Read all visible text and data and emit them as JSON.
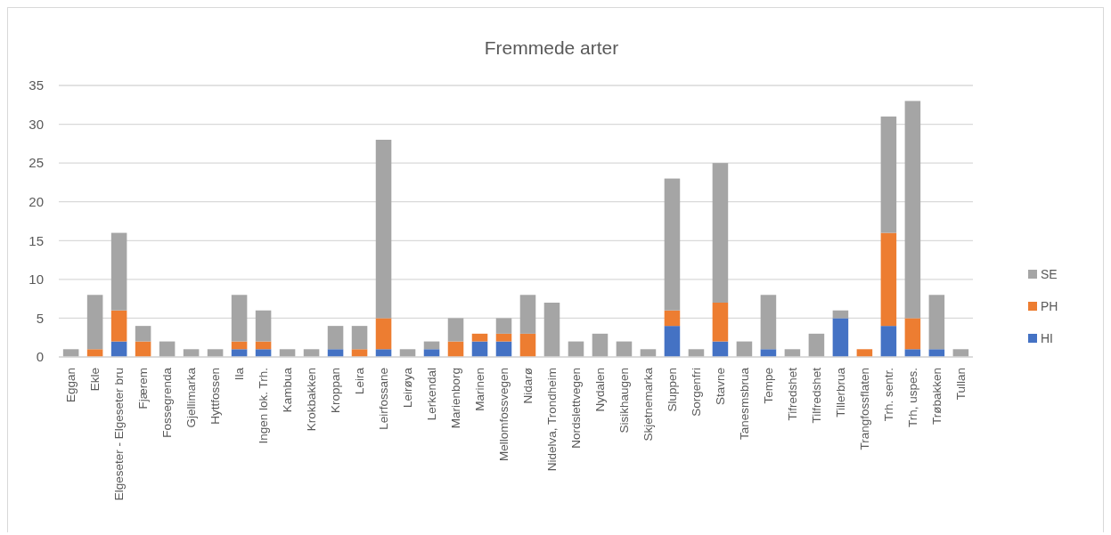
{
  "chart_data": {
    "type": "bar",
    "title": "Fremmede arter",
    "stacked": true,
    "grid": "y",
    "legend": "right",
    "categories": [
      "Eggan",
      "Ekle",
      "Elgeseter - Elgeseter bru",
      "Fjærem",
      "Fossegrenda",
      "Gjellimarka",
      "Hyttfossen",
      "Ila",
      "Ingen lok. Trh.",
      "Kambua",
      "Krokbakken",
      "Kroppan",
      "Leira",
      "Leirfossane",
      "Leirøya",
      "Lerkendal",
      "Marienborg",
      "Marinen",
      "Mellomfossvegen",
      "Nidarø",
      "Nidelva, Trondheim",
      "Nordslettvegen",
      "Nydalen",
      "Sisikhaugen",
      "Skjetnemarka",
      "Sluppen",
      "Sorgenfri",
      "Stavne",
      "Tanesmsbrua",
      "Tempe",
      "Tifredshet",
      "Tilfredshet",
      "Tillerbrua",
      "Trangfossflaten",
      "Trh. sentr.",
      "Trh, uspes.",
      "Trøbakken",
      "Tullan"
    ],
    "series": [
      {
        "name": "HI",
        "color": "#4472c4",
        "values": [
          0,
          0,
          2,
          0,
          0,
          0,
          0,
          1,
          1,
          0,
          0,
          1,
          0,
          1,
          0,
          1,
          0,
          2,
          2,
          0,
          0,
          0,
          0,
          0,
          0,
          4,
          0,
          2,
          0,
          1,
          0,
          0,
          5,
          0,
          4,
          1,
          1,
          0
        ]
      },
      {
        "name": "PH",
        "color": "#ed7d31",
        "values": [
          0,
          1,
          4,
          2,
          0,
          0,
          0,
          1,
          1,
          0,
          0,
          0,
          1,
          4,
          0,
          0,
          2,
          1,
          1,
          3,
          0,
          0,
          0,
          0,
          0,
          2,
          0,
          5,
          0,
          0,
          0,
          0,
          0,
          1,
          12,
          4,
          0,
          0
        ]
      },
      {
        "name": "SE",
        "color": "#a5a5a5",
        "values": [
          1,
          7,
          10,
          2,
          2,
          1,
          1,
          6,
          4,
          1,
          1,
          3,
          3,
          23,
          1,
          1,
          3,
          0,
          2,
          5,
          7,
          2,
          3,
          2,
          1,
          17,
          1,
          18,
          2,
          7,
          1,
          3,
          1,
          0,
          15,
          28,
          7,
          1
        ]
      }
    ],
    "ylim": [
      0,
      35
    ],
    "yticks": [
      0,
      5,
      10,
      15,
      20,
      25,
      30,
      35
    ]
  }
}
